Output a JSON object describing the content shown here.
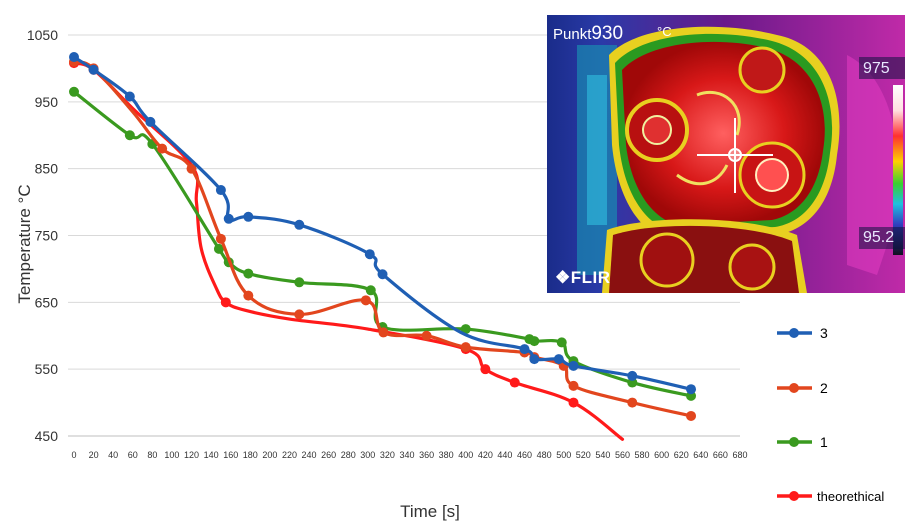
{
  "chart_data": {
    "type": "line",
    "title": "",
    "xlabel": "Time [s]",
    "ylabel": "Temperature °C",
    "xlim": [
      0,
      680
    ],
    "ylim": [
      450,
      1050
    ],
    "x_ticks": [
      0,
      20,
      40,
      60,
      80,
      100,
      120,
      140,
      160,
      180,
      200,
      220,
      240,
      260,
      280,
      300,
      320,
      340,
      360,
      380,
      400,
      420,
      440,
      460,
      480,
      500,
      520,
      540,
      560,
      580,
      600,
      620,
      640,
      660,
      680
    ],
    "y_ticks": [
      450,
      550,
      650,
      750,
      850,
      950,
      1050
    ],
    "grid": "horizontal",
    "legend_position": "right",
    "series": [
      {
        "name": "3",
        "color": "#1f5fb4",
        "x": [
          0,
          20,
          57,
          78,
          150,
          158,
          178,
          230,
          302,
          315,
          395,
          460,
          470,
          495,
          510,
          570,
          630
        ],
        "y": [
          1017,
          998,
          958,
          920,
          818,
          775,
          778,
          766,
          722,
          692,
          605,
          580,
          565,
          565,
          555,
          540,
          520
        ],
        "markers": [
          0,
          1,
          2,
          3,
          4,
          5,
          6,
          7,
          8,
          9,
          11,
          12,
          13,
          14,
          15,
          16
        ]
      },
      {
        "name": "2",
        "color": "#e2461e",
        "x": [
          0,
          20,
          60,
          90,
          120,
          150,
          178,
          230,
          298,
          316,
          360,
          400,
          460,
          470,
          500,
          510,
          570,
          630
        ],
        "y": [
          1010,
          1000,
          935,
          880,
          850,
          745,
          660,
          632,
          653,
          605,
          600,
          583,
          575,
          568,
          555,
          525,
          500,
          480
        ],
        "markers": [
          0,
          1,
          3,
          4,
          5,
          6,
          7,
          8,
          9,
          10,
          11,
          12,
          13,
          14,
          15,
          16,
          17
        ]
      },
      {
        "name": "1",
        "color": "#3a9a1f",
        "x": [
          0,
          57,
          80,
          148,
          158,
          178,
          230,
          303,
          315,
          400,
          465,
          470,
          498,
          510,
          570,
          630
        ],
        "y": [
          965,
          900,
          887,
          730,
          710,
          693,
          680,
          668,
          613,
          610,
          595,
          592,
          590,
          562,
          530,
          510
        ],
        "markers": [
          0,
          1,
          2,
          3,
          4,
          5,
          6,
          7,
          8,
          9,
          10,
          11,
          12,
          13,
          14,
          15
        ]
      },
      {
        "name": "theorethical",
        "color": "#ff1a1a",
        "x": [
          0,
          20,
          60,
          120,
          125,
          130,
          145,
          155,
          175,
          220,
          300,
          400,
          420,
          450,
          510,
          560
        ],
        "y": [
          1008,
          998,
          940,
          855,
          800,
          730,
          672,
          650,
          638,
          625,
          610,
          580,
          550,
          530,
          500,
          445
        ],
        "markers": [
          0,
          1,
          7,
          11,
          12,
          13,
          14
        ]
      }
    ]
  },
  "thermal_image": {
    "label": "Punkt",
    "value": "930",
    "unit": "°C",
    "scale_max": "975",
    "scale_min": "95.2",
    "logo": "FLIR"
  }
}
